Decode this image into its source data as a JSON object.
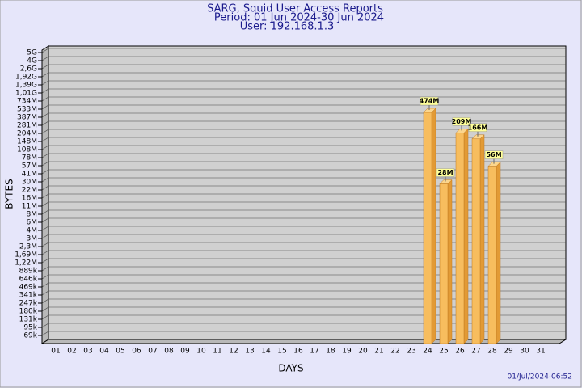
{
  "chart_data": {
    "type": "bar3d",
    "title": "SARG, Squid User Access Reports",
    "subtitle": "Period: 01 Jun 2024-30 Jun 2024",
    "user_line": "User: 192.168.1.3",
    "timestamp": "01/Jul/2024-06:52",
    "x_label": "DAYS",
    "y_label": "BYTES",
    "color": "#f7bd5e",
    "side_color": "#e29a35",
    "categories": [
      "01",
      "02",
      "03",
      "04",
      "05",
      "06",
      "07",
      "08",
      "09",
      "10",
      "11",
      "12",
      "13",
      "14",
      "15",
      "16",
      "17",
      "18",
      "19",
      "20",
      "21",
      "22",
      "23",
      "24",
      "25",
      "26",
      "27",
      "28",
      "29",
      "30",
      "31"
    ],
    "values": [
      null,
      null,
      null,
      null,
      null,
      null,
      null,
      null,
      null,
      null,
      null,
      null,
      null,
      null,
      null,
      null,
      null,
      null,
      null,
      null,
      null,
      null,
      null,
      474000000,
      28000000,
      209000000,
      166000000,
      56000000,
      null,
      null,
      null
    ],
    "value_labels": [
      null,
      null,
      null,
      null,
      null,
      null,
      null,
      null,
      null,
      null,
      null,
      null,
      null,
      null,
      null,
      null,
      null,
      null,
      null,
      null,
      null,
      null,
      null,
      "474M",
      "28M",
      "209M",
      "166M",
      "56M",
      null,
      null,
      null
    ],
    "ylim": [
      0,
      5000000000
    ],
    "yticks": [
      {
        "value": 69000,
        "label": "69k"
      },
      {
        "value": 95000,
        "label": "95k"
      },
      {
        "value": 131000,
        "label": "131k"
      },
      {
        "value": 180000,
        "label": "180k"
      },
      {
        "value": 247000,
        "label": "247k"
      },
      {
        "value": 341000,
        "label": "341k"
      },
      {
        "value": 469000,
        "label": "469k"
      },
      {
        "value": 646000,
        "label": "646k"
      },
      {
        "value": 889000,
        "label": "889k"
      },
      {
        "value": 1220000,
        "label": "1,22M"
      },
      {
        "value": 1690000,
        "label": "1,69M"
      },
      {
        "value": 2300000,
        "label": "2,3M"
      },
      {
        "value": 3000000,
        "label": "3M"
      },
      {
        "value": 4000000,
        "label": "4M"
      },
      {
        "value": 6000000,
        "label": "6M"
      },
      {
        "value": 8000000,
        "label": "8M"
      },
      {
        "value": 11000000,
        "label": "11M"
      },
      {
        "value": 16000000,
        "label": "16M"
      },
      {
        "value": 22000000,
        "label": "22M"
      },
      {
        "value": 30000000,
        "label": "30M"
      },
      {
        "value": 41000000,
        "label": "41M"
      },
      {
        "value": 57000000,
        "label": "57M"
      },
      {
        "value": 78000000,
        "label": "78M"
      },
      {
        "value": 108000000,
        "label": "108M"
      },
      {
        "value": 148000000,
        "label": "148M"
      },
      {
        "value": 204000000,
        "label": "204M"
      },
      {
        "value": 281000000,
        "label": "281M"
      },
      {
        "value": 387000000,
        "label": "387M"
      },
      {
        "value": 533000000,
        "label": "533M"
      },
      {
        "value": 734000000,
        "label": "734M"
      },
      {
        "value": 1010000000,
        "label": "1,01G"
      },
      {
        "value": 1390000000,
        "label": "1,39G"
      },
      {
        "value": 1920000000,
        "label": "1,92G"
      },
      {
        "value": 2600000000,
        "label": "2,6G"
      },
      {
        "value": 4000000000,
        "label": "4G"
      },
      {
        "value": 5000000000,
        "label": "5G"
      }
    ],
    "grid": true
  }
}
